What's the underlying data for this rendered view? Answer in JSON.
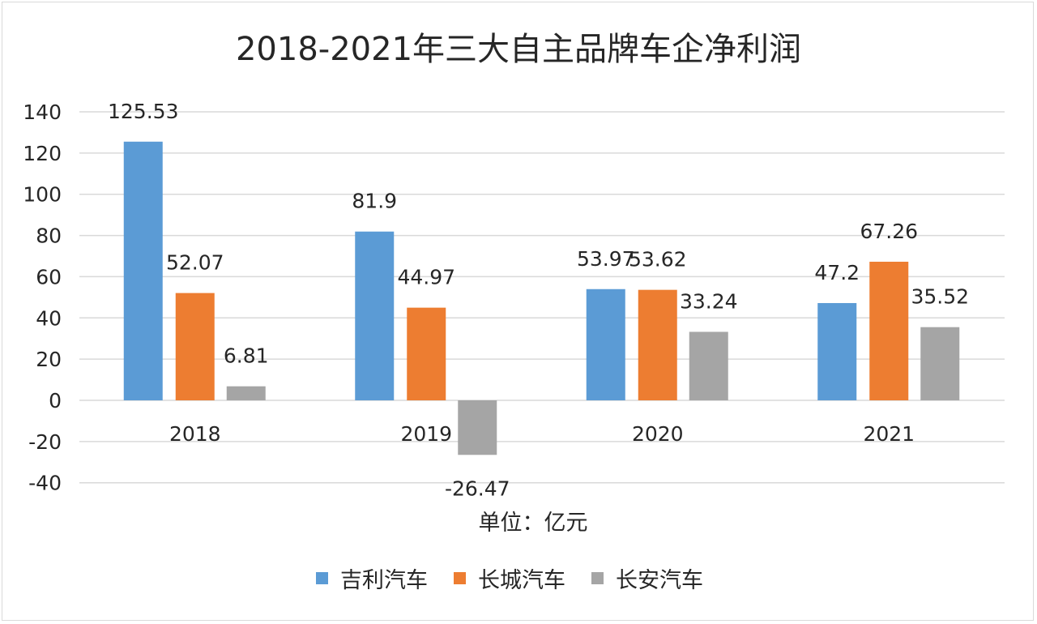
{
  "chart_data": {
    "type": "bar",
    "title": "2018-2021年三大自主品牌车企净利润",
    "xlabel": "单位：亿元",
    "ylabel": "",
    "categories": [
      "2018",
      "2019",
      "2020",
      "2021"
    ],
    "series": [
      {
        "name": "吉利汽车",
        "color": "#5b9bd5",
        "values": [
          125.53,
          81.9,
          53.97,
          47.2
        ]
      },
      {
        "name": "长城汽车",
        "color": "#ed7d31",
        "values": [
          52.07,
          44.97,
          53.62,
          67.26
        ]
      },
      {
        "name": "长安汽车",
        "color": "#a5a5a5",
        "values": [
          6.81,
          -26.47,
          33.24,
          35.52
        ]
      }
    ],
    "ylim": [
      -40,
      140
    ],
    "yticks": [
      -40,
      -20,
      0,
      20,
      40,
      60,
      80,
      100,
      120,
      140
    ],
    "grid": true,
    "legend": "bottom",
    "data_labels": true
  }
}
